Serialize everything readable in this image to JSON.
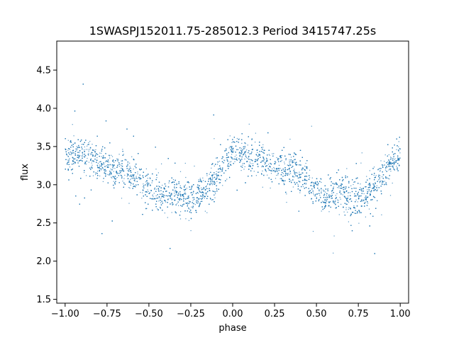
{
  "chart_data": {
    "type": "scatter",
    "title": "1SWASPJ152011.75-285012.3 Period 3415747.25s",
    "xlabel": "phase",
    "ylabel": "flux",
    "xlim": [
      -1.05,
      1.05
    ],
    "ylim": [
      1.45,
      4.88
    ],
    "xticks": [
      -1.0,
      -0.75,
      -0.5,
      -0.25,
      0.0,
      0.25,
      0.5,
      0.75,
      1.0
    ],
    "xtick_labels": [
      "−1.00",
      "−0.75",
      "−0.50",
      "−0.25",
      "0.00",
      "0.25",
      "0.50",
      "0.75",
      "1.00"
    ],
    "yticks": [
      1.5,
      2.0,
      2.5,
      3.0,
      3.5,
      4.0,
      4.5
    ],
    "ytick_labels": [
      "1.5",
      "2.0",
      "2.5",
      "3.0",
      "3.5",
      "4.0",
      "4.5"
    ],
    "grid": false,
    "point_color": "#1f77b4",
    "series": [
      {
        "x": [
          -1.0,
          -0.95,
          -0.9,
          -0.85,
          -0.8,
          -0.75,
          -0.7,
          -0.65,
          -0.6,
          -0.55,
          -0.5,
          -0.45,
          -0.4,
          -0.35,
          -0.3,
          -0.25,
          -0.2,
          -0.15,
          -0.1,
          -0.05,
          0.0,
          0.05,
          0.1,
          0.15,
          0.2,
          0.25,
          0.3,
          0.35,
          0.4,
          0.45,
          0.5,
          0.55,
          0.6,
          0.65,
          0.7,
          0.75,
          0.8,
          0.85,
          0.9,
          0.95,
          1.0
        ],
        "y": [
          3.4,
          3.38,
          3.4,
          3.35,
          3.3,
          3.25,
          3.2,
          3.2,
          3.15,
          3.05,
          2.95,
          2.85,
          2.85,
          2.9,
          2.85,
          2.8,
          2.9,
          3.0,
          3.1,
          3.3,
          3.4,
          3.38,
          3.4,
          3.35,
          3.3,
          3.25,
          3.2,
          3.2,
          3.15,
          3.05,
          2.95,
          2.85,
          2.85,
          2.9,
          2.85,
          2.8,
          2.9,
          3.0,
          3.1,
          3.3,
          3.4
        ]
      }
    ]
  }
}
